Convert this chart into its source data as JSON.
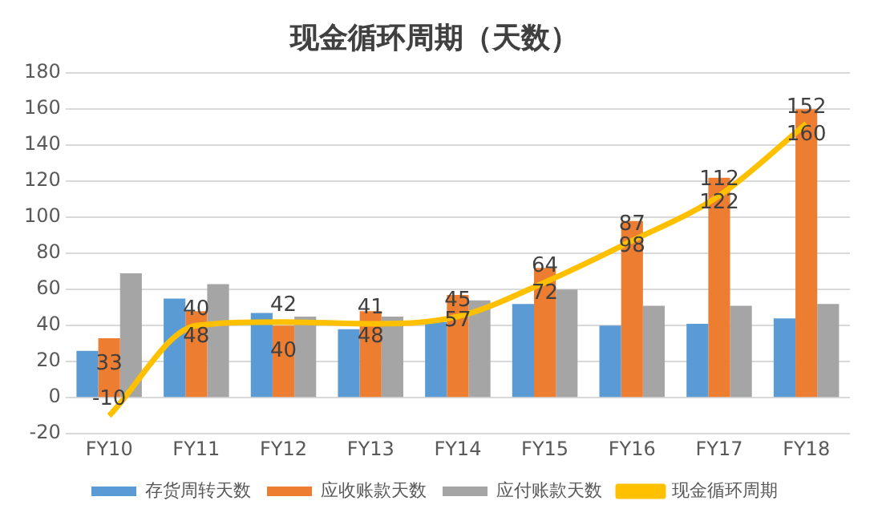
{
  "chart_data": {
    "type": "bar",
    "title": "现金循环周期（天数）",
    "categories": [
      "FY10",
      "FY11",
      "FY12",
      "FY13",
      "FY14",
      "FY15",
      "FY16",
      "FY17",
      "FY18"
    ],
    "series": [
      {
        "name": "存货周转天数",
        "color": "#5b9bd5",
        "values": [
          26,
          55,
          47,
          38,
          42,
          52,
          40,
          41,
          44
        ]
      },
      {
        "name": "应收账款天数",
        "color": "#ed7d31",
        "values": [
          33,
          48,
          40,
          48,
          57,
          72,
          98,
          122,
          160
        ],
        "value_labels": [
          "33",
          "48",
          "40",
          "48",
          "57",
          "72",
          "98",
          "122",
          "160"
        ]
      },
      {
        "name": "应付账款天数",
        "color": "#a5a5a5",
        "values": [
          69,
          63,
          45,
          45,
          54,
          60,
          51,
          51,
          52
        ]
      },
      {
        "name": "现金循环周期",
        "type": "line",
        "color": "#ffc000",
        "values": [
          -10,
          40,
          42,
          41,
          45,
          64,
          87,
          112,
          152
        ],
        "value_labels": [
          "-10",
          "40",
          "42",
          "41",
          "45",
          "64",
          "87",
          "112",
          "152"
        ]
      }
    ],
    "ylim": [
      -20,
      180
    ],
    "yticks": [
      -20,
      0,
      20,
      40,
      60,
      80,
      100,
      120,
      140,
      160,
      180
    ],
    "grid": "y",
    "legend": "bottom",
    "marker": "none"
  }
}
